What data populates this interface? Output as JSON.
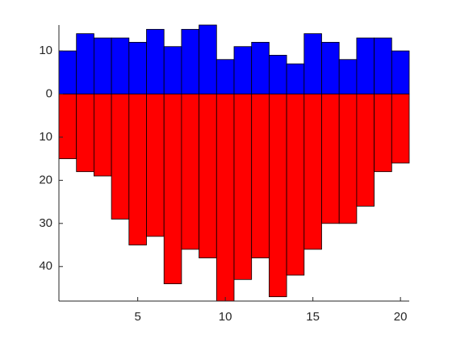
{
  "chart_data": {
    "type": "bar",
    "x": [
      1,
      2,
      3,
      4,
      5,
      6,
      7,
      8,
      9,
      10,
      11,
      12,
      13,
      14,
      15,
      16,
      17,
      18,
      19,
      20
    ],
    "series": [
      {
        "color": "#0000ff",
        "values": [
          10,
          14,
          13,
          13,
          12,
          15,
          11,
          15,
          16,
          8,
          11,
          12,
          9,
          7,
          14,
          12,
          8,
          13,
          13,
          10
        ]
      },
      {
        "color": "#ff0000",
        "values": [
          -15,
          -18,
          -19,
          -29,
          -35,
          -33,
          -44,
          -36,
          -38,
          -48,
          -43,
          -38,
          -47,
          -42,
          -36,
          -30,
          -30,
          -26,
          -18,
          -16
        ]
      }
    ],
    "xlim": [
      0.5,
      20.5
    ],
    "xticks": [
      5,
      10,
      15,
      20
    ],
    "ylim": [
      -48,
      16
    ],
    "yticks": [
      {
        "value": -40,
        "label": "40"
      },
      {
        "value": -30,
        "label": "30"
      },
      {
        "value": -20,
        "label": "20"
      },
      {
        "value": -10,
        "label": "10"
      },
      0,
      10
    ]
  }
}
